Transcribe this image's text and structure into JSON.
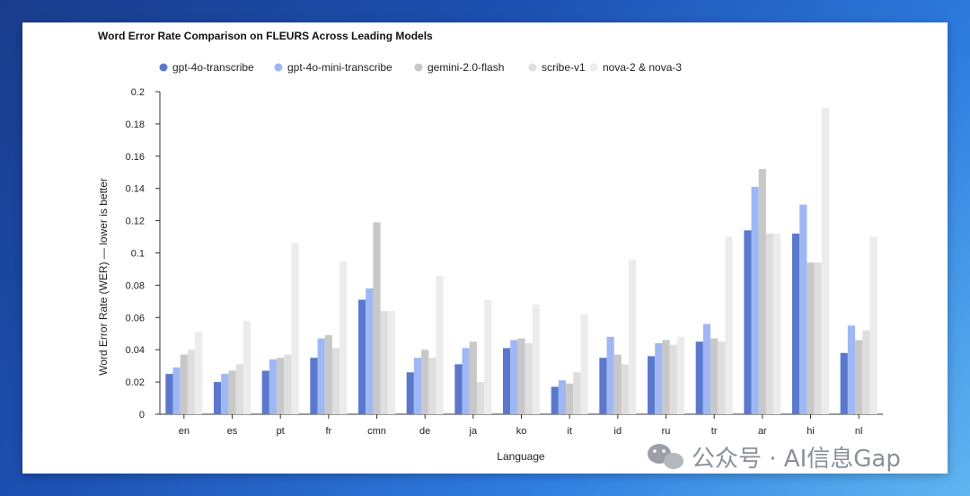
{
  "chart_data": {
    "type": "bar",
    "title": "Word Error Rate Comparison on FLEURS Across Leading Models",
    "xlabel": "Language",
    "ylabel": "Word Error Rate (WER) — lower is better",
    "ylim": [
      0,
      0.2
    ],
    "yticks": [
      "0",
      "0.02",
      "0.04",
      "0.06",
      "0.08",
      "0.1",
      "0.12",
      "0.14",
      "0.16",
      "0.18",
      "0.2"
    ],
    "categories": [
      "en",
      "es",
      "pt",
      "fr",
      "cmn",
      "de",
      "ja",
      "ko",
      "it",
      "id",
      "ru",
      "tr",
      "ar",
      "hi",
      "nl"
    ],
    "legend_position": "top",
    "grid": false,
    "series": [
      {
        "name": "gpt-4o-transcribe",
        "color": "#5b79cc",
        "values": [
          0.025,
          0.02,
          0.027,
          0.035,
          0.071,
          0.026,
          0.031,
          0.041,
          0.017,
          0.035,
          0.036,
          0.045,
          0.114,
          0.112,
          0.038
        ]
      },
      {
        "name": "gpt-4o-mini-transcribe",
        "color": "#9fb8f4",
        "values": [
          0.029,
          0.025,
          0.034,
          0.047,
          0.078,
          0.035,
          0.041,
          0.046,
          0.021,
          0.048,
          0.044,
          0.056,
          0.141,
          0.13,
          0.055
        ]
      },
      {
        "name": "gemini-2.0-flash",
        "color": "#c8c8c8",
        "values": [
          0.037,
          0.027,
          0.035,
          0.049,
          0.119,
          0.04,
          0.045,
          0.047,
          0.019,
          0.037,
          0.046,
          0.047,
          0.152,
          0.094,
          0.046
        ]
      },
      {
        "name": "scribe-v1",
        "color": "#dedede",
        "values": [
          0.04,
          0.031,
          0.037,
          0.041,
          0.064,
          0.035,
          0.02,
          0.044,
          0.026,
          0.031,
          0.043,
          0.045,
          0.112,
          0.094,
          0.052
        ]
      },
      {
        "name": "nova-2 & nova-3",
        "color": "#ececec",
        "values": [
          0.051,
          0.058,
          0.106,
          0.095,
          0.064,
          0.086,
          0.071,
          0.068,
          0.062,
          0.096,
          0.048,
          0.11,
          0.112,
          0.19,
          0.11
        ]
      }
    ]
  },
  "watermark": {
    "text": "公众号 · AI信息Gap",
    "icon": "wechat-icon"
  }
}
